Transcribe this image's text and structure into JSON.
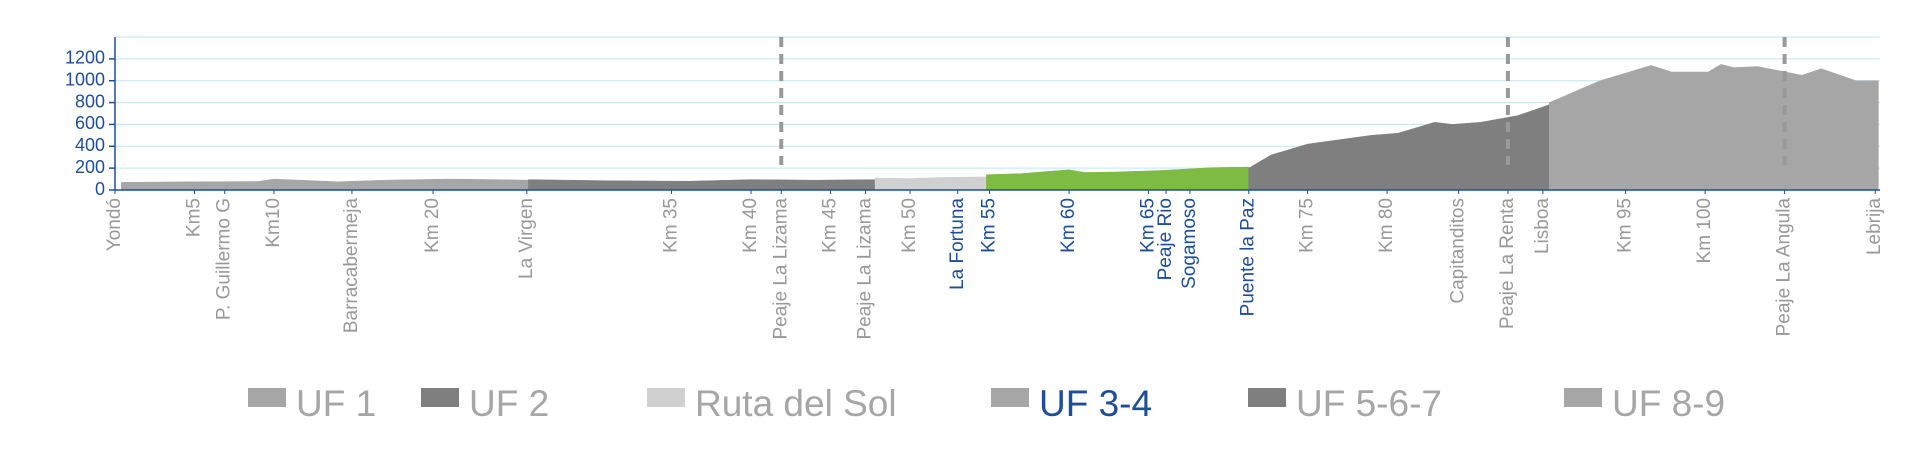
{
  "chart_data": {
    "type": "area",
    "xlim": [
      0,
      111
    ],
    "ylim": [
      0,
      1400
    ],
    "yticks": [
      0,
      200,
      400,
      600,
      800,
      1000,
      1200
    ],
    "grid": true,
    "xticks": [
      {
        "value": 0,
        "label": "Yondó"
      },
      {
        "value": 5,
        "label": "Km5"
      },
      {
        "value": 6.9,
        "label": "P. Guillermo G"
      },
      {
        "value": 10,
        "label": "Km10"
      },
      {
        "value": 14.9,
        "label": "Barracabermeja"
      },
      {
        "value": 20,
        "label": "Km 20"
      },
      {
        "value": 25.9,
        "label": "La Virgen"
      },
      {
        "value": 35,
        "label": "Km 35"
      },
      {
        "value": 40,
        "label": "Km 40"
      },
      {
        "value": 41.9,
        "label": "Peaje La Lizama"
      },
      {
        "value": 45,
        "label": "Km 45"
      },
      {
        "value": 47.2,
        "label": "Peaje La Lizama"
      },
      {
        "value": 50,
        "label": "Km 50"
      },
      {
        "value": 53,
        "label": "La Fortuna",
        "color": "#1f4e99"
      },
      {
        "value": 55,
        "label": "Km 55",
        "color": "#1f4e99"
      },
      {
        "value": 60,
        "label": "Km 60",
        "color": "#1f4e99"
      },
      {
        "value": 65,
        "label": "Km 65",
        "color": "#1f4e99"
      },
      {
        "value": 66.1,
        "label": "Peaje Rio",
        "color": "#1f4e99"
      },
      {
        "value": 67.6,
        "label": "Sogamoso",
        "color": "#1f4e99"
      },
      {
        "value": 71.3,
        "label": "Puente la Paz",
        "color": "#1f4e99"
      },
      {
        "value": 75,
        "label": "Km 75"
      },
      {
        "value": 80,
        "label": "Km 80"
      },
      {
        "value": 84.5,
        "label": "Capitanditos"
      },
      {
        "value": 87.6,
        "label": "Peaje La Renta"
      },
      {
        "value": 89.8,
        "label": "Lisboa"
      },
      {
        "value": 95,
        "label": "Km 95"
      },
      {
        "value": 100,
        "label": "Km 100"
      },
      {
        "value": 105,
        "label": "Peaje La Angula"
      },
      {
        "value": 110.7,
        "label": "Lebrija"
      }
    ],
    "markers": [
      41.9,
      87.6,
      105
    ],
    "series": [
      {
        "name": "UF 1",
        "color": "#a6a6a6",
        "legend_color": "#a6a6a6",
        "label_color": "#a6a6a6",
        "x": [
          0.4,
          5,
          9,
          10,
          14,
          17,
          21,
          24,
          26
        ],
        "values": [
          70,
          75,
          78,
          100,
          75,
          90,
          100,
          95,
          90
        ]
      },
      {
        "name": "UF 2",
        "color": "#7f7f7f",
        "legend_color": "#7f7f7f",
        "label_color": "#a6a6a6",
        "x": [
          26,
          31,
          36,
          40,
          44,
          47.8
        ],
        "values": [
          95,
          85,
          80,
          95,
          90,
          95
        ]
      },
      {
        "name": "Ruta del Sol",
        "color": "#d0d0d0",
        "legend_color": "#d0d0d0",
        "label_color": "#a6a6a6",
        "x": [
          47.8,
          50,
          52,
          54.8
        ],
        "values": [
          110,
          105,
          115,
          120
        ]
      },
      {
        "name": "UF 3-4",
        "color": "#7dbb42",
        "legend_color": "#a6a6a6",
        "label_color": "#1f4e99",
        "x": [
          54.8,
          57,
          60,
          61,
          63,
          66,
          69,
          71.3
        ],
        "values": [
          140,
          150,
          185,
          160,
          165,
          180,
          205,
          210
        ]
      },
      {
        "name": "UF 5-6-7",
        "color": "#7f7f7f",
        "legend_color": "#7f7f7f",
        "label_color": "#a6a6a6",
        "x": [
          71.3,
          72.7,
          75,
          79,
          80.7,
          83,
          84.1,
          85.9,
          88.2,
          90.2
        ],
        "values": [
          200,
          320,
          420,
          500,
          520,
          620,
          600,
          620,
          680,
          780
        ]
      },
      {
        "name": "UF 8-9",
        "color": "#a6a6a6",
        "legend_color": "#a6a6a6",
        "label_color": "#a6a6a6",
        "x": [
          90.2,
          93.4,
          95.7,
          96.6,
          97.9,
          100.2,
          101,
          101.8,
          103.3,
          106.1,
          107.3,
          109.5,
          110.9
        ],
        "values": [
          800,
          1000,
          1100,
          1140,
          1080,
          1080,
          1150,
          1120,
          1130,
          1050,
          1110,
          1000,
          1000
        ]
      }
    ]
  }
}
